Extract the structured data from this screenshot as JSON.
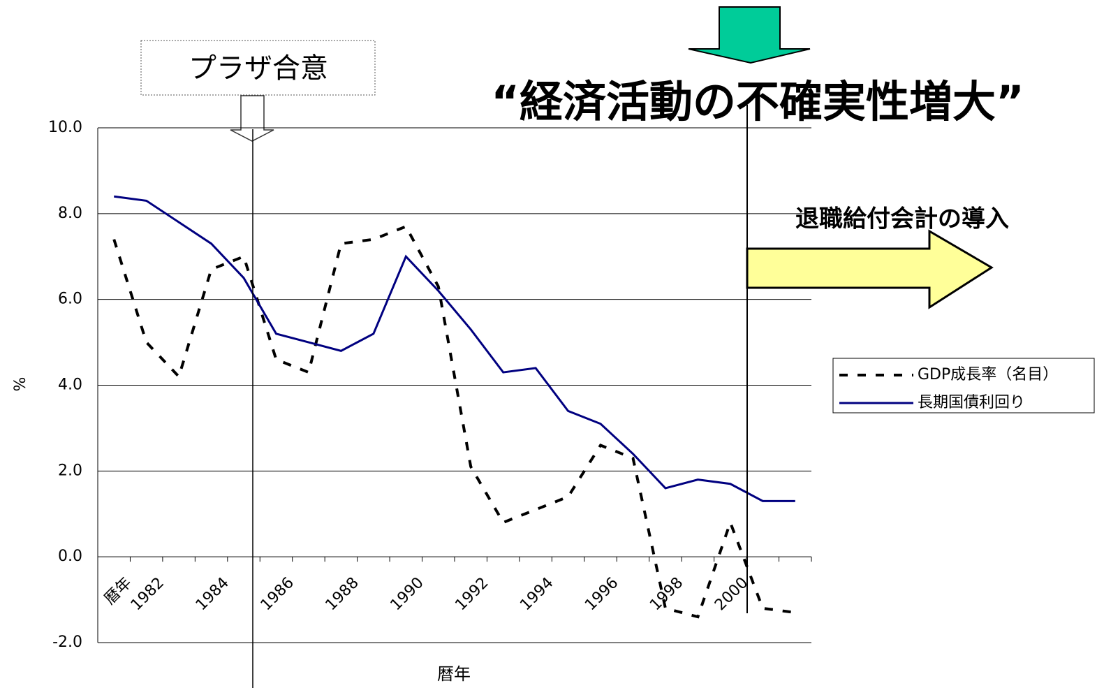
{
  "chart_data": {
    "type": "line",
    "annotations": [
      "プラザ合意",
      "“経済活動の不確実性増大”",
      "退職給付会計の導入"
    ],
    "x_label": "暦年",
    "y_label": "%",
    "categories": [
      "暦年",
      "1982",
      null,
      "1984",
      null,
      "1986",
      null,
      "1988",
      null,
      "1990",
      null,
      "1992",
      null,
      "1994",
      null,
      "1996",
      null,
      "1998",
      null,
      "2000",
      null,
      null
    ],
    "series": [
      {
        "name": "GDP成長率（名目）",
        "color": "#000000",
        "dash": true,
        "values": [
          7.4,
          5.0,
          4.2,
          6.7,
          7.0,
          4.6,
          4.3,
          7.3,
          7.4,
          7.7,
          6.3,
          2.1,
          0.8,
          1.1,
          1.4,
          2.6,
          2.3,
          -1.2,
          -1.4,
          0.8,
          -1.2,
          -1.3
        ]
      },
      {
        "name": "長期国債利回り",
        "color": "#000080",
        "dash": false,
        "values": [
          8.4,
          8.3,
          7.8,
          7.3,
          6.5,
          5.2,
          5.0,
          4.8,
          5.2,
          7.0,
          6.2,
          5.3,
          4.3,
          4.4,
          3.4,
          3.1,
          2.4,
          1.6,
          1.8,
          1.7,
          1.3,
          1.3
        ]
      }
    ],
    "ylim": [
      -2,
      10
    ],
    "yticks": [
      {
        "value": -2,
        "label": "-2.0"
      },
      {
        "value": 0,
        "label": "0.0"
      },
      {
        "value": 2,
        "label": "2.0"
      },
      {
        "value": 4,
        "label": "4.0"
      },
      {
        "value": 6,
        "label": "6.0"
      },
      {
        "value": 8,
        "label": "8.0"
      },
      {
        "value": 10,
        "label": "10.0"
      }
    ],
    "grid": true,
    "legend": "right"
  }
}
